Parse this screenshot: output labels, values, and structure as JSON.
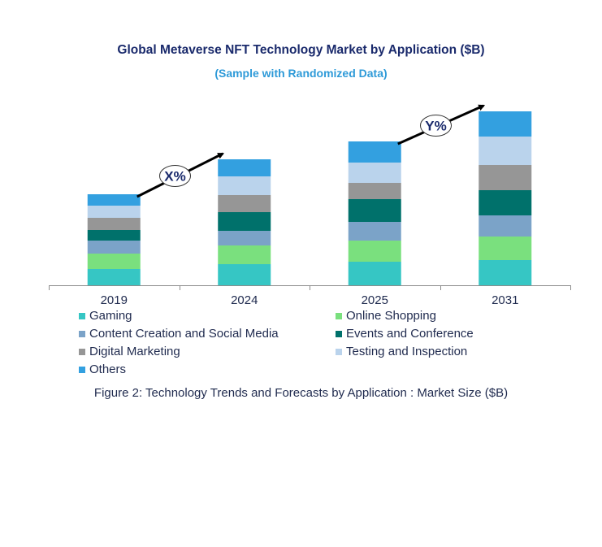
{
  "chart_data": {
    "type": "bar",
    "stacked": true,
    "title": "Global Metaverse NFT Technology Market by Application ($B)",
    "subtitle": "(Sample with Randomized Data)",
    "caption": "Figure 2: Technology  Trends  and Forecasts by Application : Market Size ($B)",
    "xlabel": "",
    "ylabel": "",
    "y_axis_shown": false,
    "grid": false,
    "legend_placement": "bottom",
    "categories": [
      "2019",
      "2024",
      "2025",
      "2031"
    ],
    "series": [
      {
        "name": "Gaming",
        "color": "#36c6c4",
        "values": [
          20,
          26,
          29,
          31
        ]
      },
      {
        "name": "Online Shopping",
        "color": "#7ae07e",
        "values": [
          19,
          23,
          26,
          29
        ]
      },
      {
        "name": "Content Creation and Social Media",
        "color": "#7ba3c8",
        "values": [
          16,
          18,
          23,
          26
        ]
      },
      {
        "name": "Events and Conference",
        "color": "#00716b",
        "values": [
          13,
          23,
          28,
          31
        ]
      },
      {
        "name": "Digital Marketing",
        "color": "#969696",
        "values": [
          15,
          21,
          20,
          31
        ]
      },
      {
        "name": "Testing and Inspection",
        "color": "#bad3ec",
        "values": [
          15,
          23,
          25,
          35
        ]
      },
      {
        "name": "Others",
        "color": "#33a0e0",
        "values": [
          14,
          21,
          26,
          31
        ]
      }
    ],
    "annotations": [
      {
        "text": "X%",
        "from": "2019",
        "to": "2024"
      },
      {
        "text": "Y%",
        "from": "2025",
        "to": "2031"
      }
    ]
  }
}
